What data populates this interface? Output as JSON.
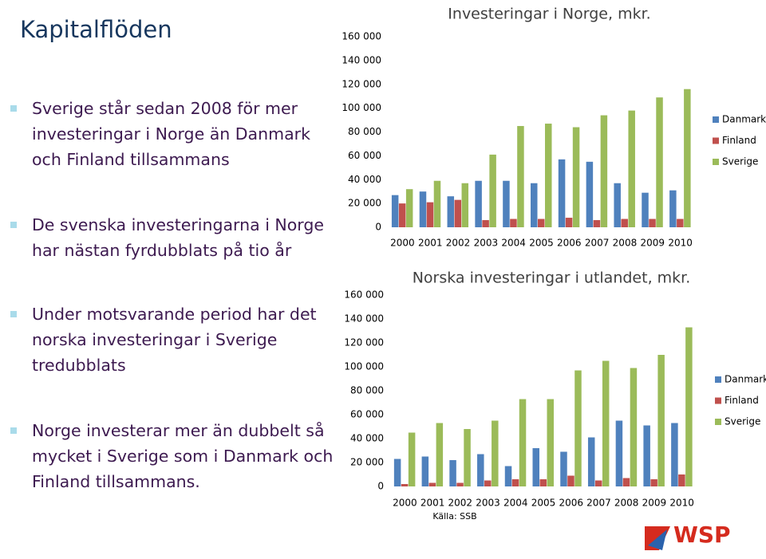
{
  "slide_title": "Kapitalflöden",
  "bullets": [
    "Sverige står sedan 2008 för mer investeringar i Norge än Danmark och Finland tillsammans",
    "De svenska investeringarna i Norge har nästan fyrdubblats på tio år",
    "Under motsvarande period har det norska investeringar i Sverige tredubblats",
    "Norge investerar mer än dubbelt så mycket i Sverige som i Danmark och Finland tillsammans."
  ],
  "chart_data": [
    {
      "type": "bar",
      "title": "Investeringar i Norge, mkr.",
      "categories": [
        "2000",
        "2001",
        "2002",
        "2003",
        "2004",
        "2005",
        "2006",
        "2007",
        "2008",
        "2009",
        "2010"
      ],
      "series": [
        {
          "name": "Danmark",
          "color": "#4f81bd",
          "values": [
            27000,
            30000,
            26000,
            39000,
            39000,
            37000,
            57000,
            55000,
            37000,
            29000,
            31000
          ]
        },
        {
          "name": "Finland",
          "color": "#c0504d",
          "values": [
            20000,
            21000,
            23000,
            6000,
            7000,
            7000,
            8000,
            6000,
            7000,
            7000,
            7000
          ]
        },
        {
          "name": "Sverige",
          "color": "#9bbb59",
          "values": [
            32000,
            39000,
            37000,
            61000,
            85000,
            87000,
            84000,
            94000,
            98000,
            109000,
            116000
          ]
        }
      ],
      "ylim": [
        0,
        160000
      ],
      "yticks": [
        0,
        {
          "value": 20000,
          "label": "20 000"
        },
        {
          "value": 40000,
          "label": "40 000"
        },
        {
          "value": 60000,
          "label": "60 000"
        },
        {
          "value": 80000,
          "label": "80 000"
        },
        {
          "value": 100000,
          "label": "100 000"
        },
        {
          "value": 120000,
          "label": "120 000"
        },
        {
          "value": 140000,
          "label": "140 000"
        },
        {
          "value": 160000,
          "label": "160 000"
        }
      ],
      "legend": "right"
    },
    {
      "type": "bar",
      "title": "Norska investeringar i utlandet, mkr.",
      "categories": [
        "2000",
        "2001",
        "2002",
        "2003",
        "2004",
        "2005",
        "2006",
        "2007",
        "2008",
        "2009",
        "2010"
      ],
      "series": [
        {
          "name": "Danmark",
          "color": "#4f81bd",
          "values": [
            23000,
            25000,
            22000,
            27000,
            17000,
            32000,
            29000,
            41000,
            55000,
            51000,
            53000
          ]
        },
        {
          "name": "Finland",
          "color": "#c0504d",
          "values": [
            2000,
            3000,
            3000,
            5000,
            6000,
            6000,
            9000,
            5000,
            7000,
            6000,
            10000
          ]
        },
        {
          "name": "Sverige",
          "color": "#9bbb59",
          "values": [
            45000,
            53000,
            48000,
            55000,
            73000,
            73000,
            97000,
            105000,
            99000,
            110000,
            133000
          ]
        }
      ],
      "ylim": [
        0,
        160000
      ],
      "yticks": [
        0,
        {
          "value": 20000,
          "label": "20 000"
        },
        {
          "value": 40000,
          "label": "40 000"
        },
        {
          "value": 60000,
          "label": "60 000"
        },
        {
          "value": 80000,
          "label": "80 000"
        },
        {
          "value": 100000,
          "label": "100 000"
        },
        {
          "value": 120000,
          "label": "120 000"
        },
        {
          "value": 140000,
          "label": "140 000"
        },
        {
          "value": 160000,
          "label": "160 000"
        }
      ],
      "legend": "right",
      "source": "Källa: SSB"
    }
  ],
  "logo": "WSP"
}
